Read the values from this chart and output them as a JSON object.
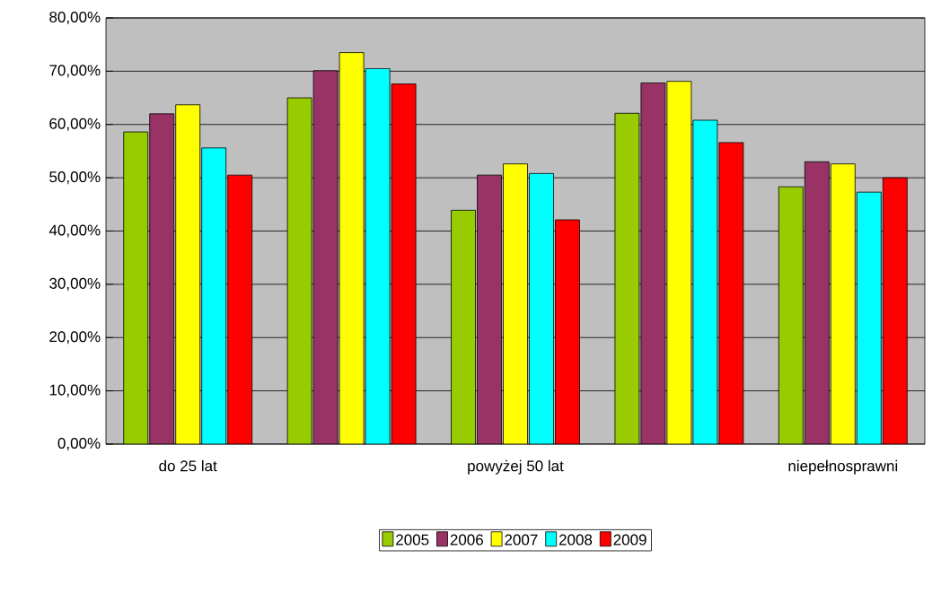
{
  "chart_data": {
    "type": "bar",
    "categories": [
      "do 25 lat",
      null,
      "powyżej 50 lat",
      null,
      "niepełnosprawni"
    ],
    "series": [
      {
        "name": "2005",
        "color": "#99cc00",
        "values": [
          58.6,
          65.0,
          43.9,
          62.1,
          48.3
        ]
      },
      {
        "name": "2006",
        "color": "#993366",
        "values": [
          62.0,
          70.1,
          50.5,
          67.8,
          53.0
        ]
      },
      {
        "name": "2007",
        "color": "#ffff00",
        "values": [
          63.7,
          73.5,
          52.6,
          68.1,
          52.6
        ]
      },
      {
        "name": "2008",
        "color": "#00ffff",
        "values": [
          55.6,
          70.5,
          50.8,
          60.8,
          47.3
        ]
      },
      {
        "name": "2009",
        "color": "#ff0000",
        "values": [
          50.5,
          67.6,
          42.1,
          56.6,
          50.0
        ]
      }
    ],
    "ylim": [
      0,
      80
    ],
    "yticks": [
      {
        "value": 0,
        "label": "0,00%"
      },
      {
        "value": 10,
        "label": "10,00%"
      },
      {
        "value": 20,
        "label": "20,00%"
      },
      {
        "value": 30,
        "label": "30,00%"
      },
      {
        "value": 40,
        "label": "40,00%"
      },
      {
        "value": 50,
        "label": "50,00%"
      },
      {
        "value": 60,
        "label": "60,00%"
      },
      {
        "value": 70,
        "label": "70,00%"
      },
      {
        "value": 80,
        "label": "80,00%"
      }
    ],
    "grid": "y",
    "legend": "bottom"
  }
}
